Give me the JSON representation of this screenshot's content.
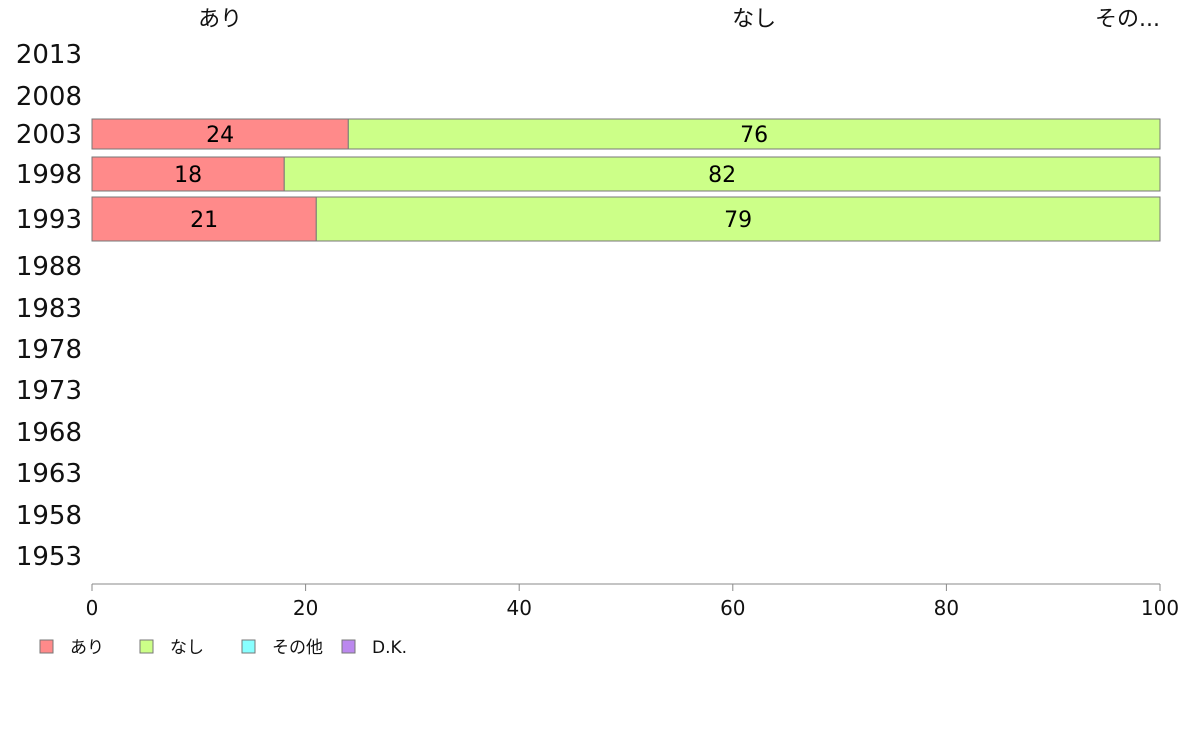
{
  "chart_data": {
    "type": "bar",
    "orientation": "horizontal",
    "stacked": true,
    "categories": [
      "2013",
      "2008",
      "2003",
      "1998",
      "1993",
      "1988",
      "1983",
      "1978",
      "1973",
      "1968",
      "1963",
      "1958",
      "1953"
    ],
    "series": [
      {
        "name": "あり",
        "color": "#ff8a8a",
        "values": [
          null,
          null,
          24,
          18,
          21,
          null,
          null,
          null,
          null,
          null,
          null,
          null,
          null
        ]
      },
      {
        "name": "なし",
        "color": "#ccff88",
        "values": [
          null,
          null,
          76,
          82,
          79,
          null,
          null,
          null,
          null,
          null,
          null,
          null,
          null
        ]
      },
      {
        "name": "その他",
        "color": "#88ffff",
        "values": [
          null,
          null,
          0,
          0,
          0,
          null,
          null,
          null,
          null,
          null,
          null,
          null,
          null
        ]
      },
      {
        "name": "D.K.",
        "color": "#bb88ee",
        "values": [
          null,
          null,
          0,
          0,
          0,
          null,
          null,
          null,
          null,
          null,
          null,
          null,
          null
        ]
      }
    ],
    "top_labels": [
      "あり",
      "なし",
      "その..."
    ],
    "xlim": [
      0,
      100
    ],
    "xticks": [
      0,
      20,
      40,
      60,
      80,
      100
    ],
    "legend_position": "bottom-left",
    "grid": false
  }
}
